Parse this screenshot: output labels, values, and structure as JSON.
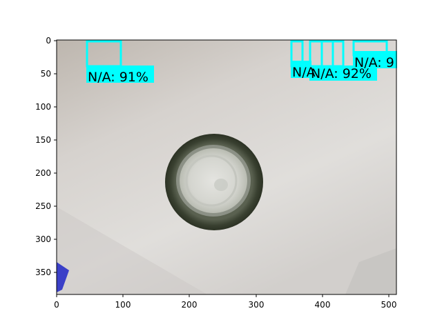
{
  "image": {
    "description_colors": {
      "background_top": "#c6c0ba",
      "background_bottom": "#e2dfdc",
      "bottle_rim": "#3f4634",
      "bottle_inner": "#dcdcd8",
      "box_color": "#00ffff"
    }
  },
  "axes": {
    "x_ticks": [
      "0",
      "100",
      "200",
      "300",
      "400",
      "500"
    ],
    "y_ticks": [
      "0",
      "50",
      "100",
      "150",
      "200",
      "250",
      "300",
      "350"
    ],
    "x_range": [
      0,
      512
    ],
    "y_range": [
      384,
      0
    ]
  },
  "detections": [
    {
      "label": "N/A: 91%"
    },
    {
      "label": "N/A"
    },
    {
      "label": "N/A: 92%"
    },
    {
      "label": "N/A: 9"
    }
  ]
}
